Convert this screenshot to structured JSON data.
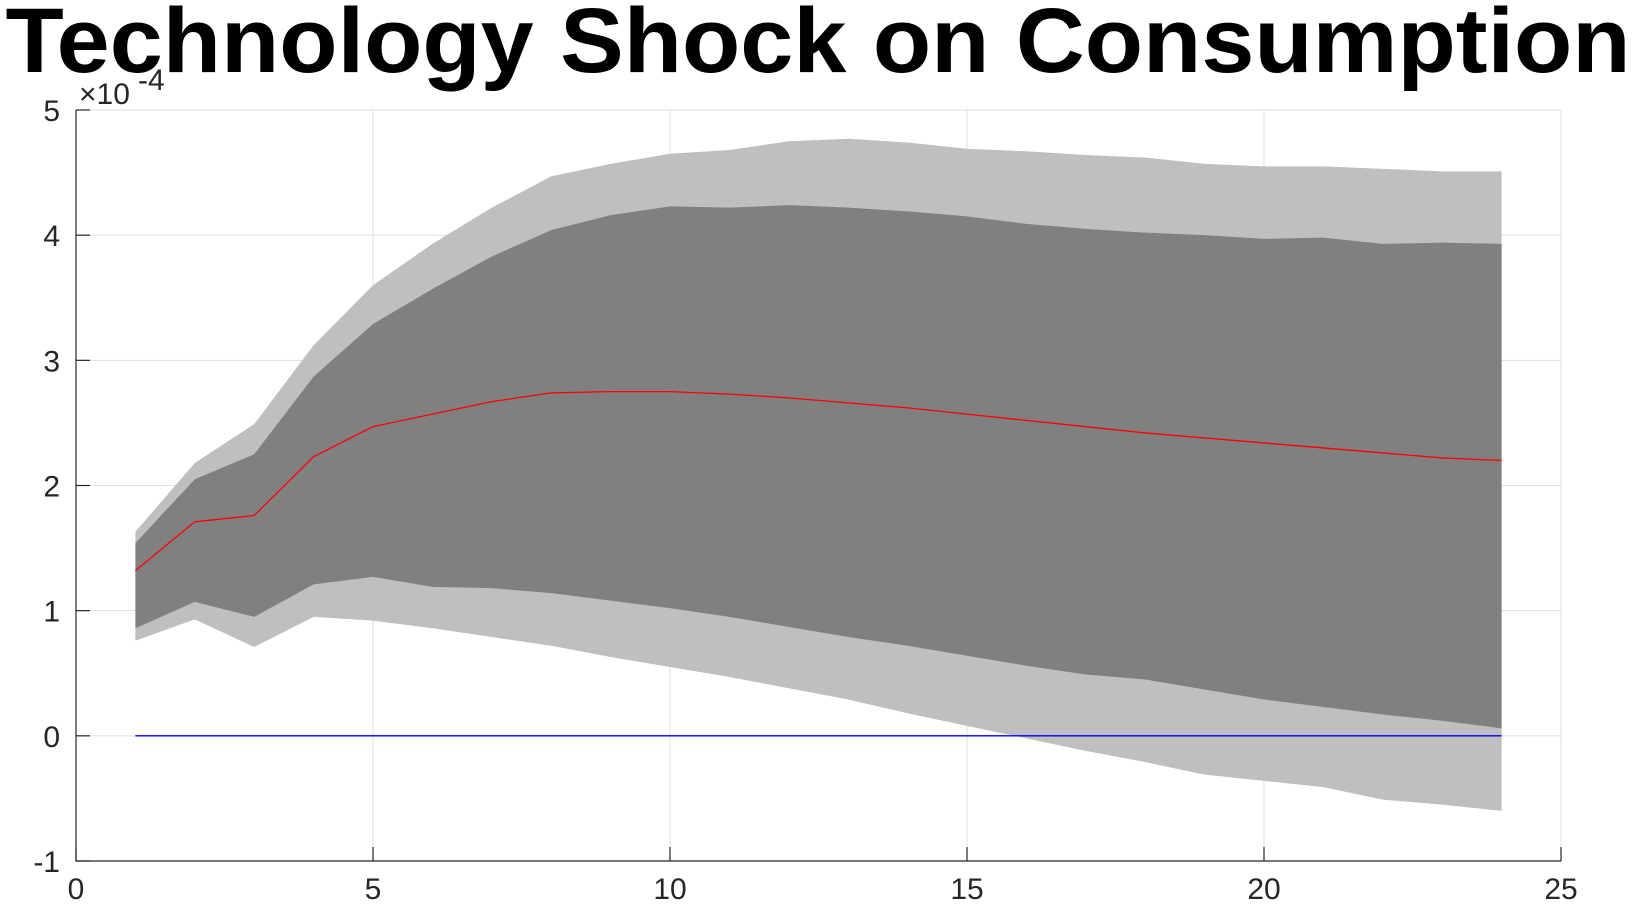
{
  "chart_data": {
    "type": "area",
    "title": "Technology Shock on Consumption",
    "xlabel": "",
    "ylabel": "",
    "y_exponent_label": "×10",
    "y_exponent_power": "-4",
    "xlim": [
      0,
      25
    ],
    "ylim": [
      -1,
      5
    ],
    "x_ticks": [
      0,
      5,
      10,
      15,
      20,
      25
    ],
    "y_ticks": [
      -1,
      0,
      1,
      2,
      3,
      4,
      5
    ],
    "grid": true,
    "legend": "none",
    "x": [
      1,
      2,
      3,
      4,
      5,
      6,
      7,
      8,
      9,
      10,
      11,
      12,
      13,
      14,
      15,
      16,
      17,
      18,
      19,
      20,
      21,
      22,
      23,
      24
    ],
    "bands": [
      {
        "role": "outer",
        "color": "#bfbfbf",
        "upper": [
          1.63,
          2.18,
          2.49,
          3.12,
          3.6,
          3.93,
          4.22,
          4.47,
          4.57,
          4.65,
          4.68,
          4.75,
          4.77,
          4.74,
          4.69,
          4.67,
          4.64,
          4.62,
          4.57,
          4.55,
          4.55,
          4.53,
          4.51,
          4.51
        ],
        "lower": [
          0.76,
          0.93,
          0.71,
          0.95,
          0.92,
          0.86,
          0.79,
          0.72,
          0.63,
          0.55,
          0.47,
          0.38,
          0.29,
          0.18,
          0.08,
          -0.02,
          -0.12,
          -0.21,
          -0.31,
          -0.36,
          -0.41,
          -0.51,
          -0.55,
          -0.6
        ]
      },
      {
        "role": "inner",
        "color": "#808080",
        "upper": [
          1.54,
          2.05,
          2.25,
          2.87,
          3.29,
          3.57,
          3.83,
          4.04,
          4.16,
          4.23,
          4.22,
          4.24,
          4.22,
          4.19,
          4.15,
          4.09,
          4.05,
          4.02,
          4.0,
          3.97,
          3.98,
          3.93,
          3.94,
          3.93
        ],
        "lower": [
          0.86,
          1.07,
          0.95,
          1.21,
          1.27,
          1.19,
          1.18,
          1.14,
          1.08,
          1.02,
          0.95,
          0.87,
          0.79,
          0.72,
          0.64,
          0.56,
          0.49,
          0.45,
          0.37,
          0.29,
          0.23,
          0.17,
          0.12,
          0.06
        ]
      }
    ],
    "series": [
      {
        "role": "median",
        "color": "#ff0000",
        "values": [
          1.32,
          1.71,
          1.76,
          2.23,
          2.47,
          2.57,
          2.67,
          2.74,
          2.75,
          2.75,
          2.73,
          2.7,
          2.66,
          2.62,
          2.57,
          2.52,
          2.47,
          2.42,
          2.38,
          2.34,
          2.3,
          2.26,
          2.22,
          2.2
        ]
      },
      {
        "role": "zero-line",
        "color": "#0000ff",
        "values": [
          0,
          0,
          0,
          0,
          0,
          0,
          0,
          0,
          0,
          0,
          0,
          0,
          0,
          0,
          0,
          0,
          0,
          0,
          0,
          0,
          0,
          0,
          0,
          0
        ]
      }
    ]
  }
}
